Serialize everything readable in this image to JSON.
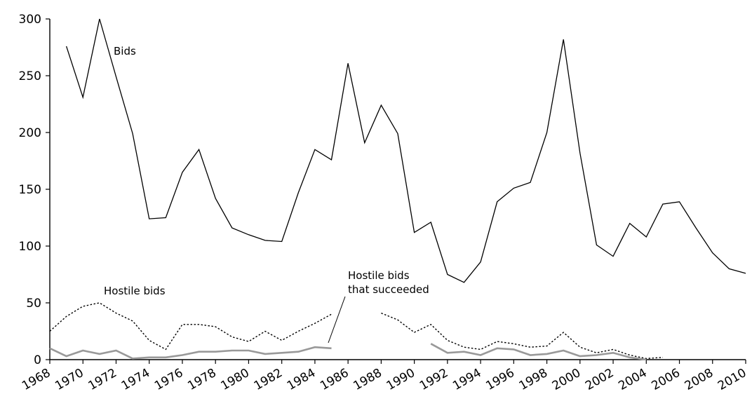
{
  "chart_data": {
    "type": "line",
    "title": "",
    "xlabel": "",
    "ylabel": "",
    "xlim": [
      1968,
      2010
    ],
    "ylim": [
      0,
      300
    ],
    "grid": false,
    "legend": "none",
    "x_ticks": [
      "1968",
      "1970",
      "1972",
      "1974",
      "1976",
      "1978",
      "1980",
      "1982",
      "1984",
      "1986",
      "1988",
      "1990",
      "1992",
      "1994",
      "1996",
      "1998",
      "2000",
      "2002",
      "2004",
      "2006",
      "2008",
      "2010"
    ],
    "y_ticks": [
      "0",
      "50",
      "100",
      "150",
      "200",
      "250",
      "300"
    ],
    "annotations": {
      "bids": "Bids",
      "hostile": "Hostile bids",
      "succeeded_line1": "Hostile bids",
      "succeeded_line2": "that succeeded"
    },
    "series": [
      {
        "name": "Bids",
        "color": "#000000",
        "style": "solid",
        "x": [
          1969,
          1970,
          1971,
          1972,
          1973,
          1974,
          1975,
          1976,
          1977,
          1978,
          1979,
          1980,
          1981,
          1982,
          1983,
          1984,
          1985,
          1986,
          1987,
          1988,
          1989,
          1990,
          1991,
          1992,
          1993,
          1994,
          1995,
          1996,
          1997,
          1998,
          1999,
          2000,
          2001,
          2002,
          2003,
          2004,
          2005,
          2006,
          2007,
          2008,
          2009,
          2010
        ],
        "y": [
          276,
          231,
          300,
          249,
          199,
          124,
          125,
          165,
          185,
          142,
          116,
          110,
          105,
          104,
          147,
          185,
          176,
          261,
          191,
          224,
          199,
          112,
          121,
          75,
          68,
          86,
          139,
          151,
          156,
          200,
          282,
          182,
          101,
          91,
          120,
          108,
          137,
          139,
          116,
          94,
          80,
          76
        ]
      },
      {
        "name": "Hostile bids",
        "color": "#000000",
        "style": "dotted",
        "segments": [
          {
            "x": [
              1968,
              1969,
              1970,
              1971,
              1972,
              1973,
              1974,
              1975,
              1976,
              1977,
              1978,
              1979,
              1980,
              1981,
              1982,
              1983,
              1984,
              1985
            ],
            "y": [
              25,
              38,
              47,
              50,
              41,
              34,
              17,
              9,
              31,
              31,
              29,
              20,
              16,
              25,
              17,
              25,
              32,
              40
            ]
          },
          {
            "x": [
              1988,
              1989,
              1990,
              1991,
              1992,
              1993,
              1994,
              1995,
              1996,
              1997,
              1998,
              1999,
              2000,
              2001,
              2002,
              2003,
              2004,
              2005
            ],
            "y": [
              41,
              35,
              24,
              31,
              17,
              11,
              9,
              16,
              14,
              11,
              12,
              24,
              11,
              6,
              9,
              4,
              1,
              2
            ]
          }
        ]
      },
      {
        "name": "Hostile bids that succeeded",
        "color": "#999999",
        "style": "solid",
        "segments": [
          {
            "x": [
              1968,
              1969,
              1970,
              1971,
              1972,
              1973,
              1974,
              1975,
              1976,
              1977,
              1978,
              1979,
              1980,
              1981,
              1982,
              1983,
              1984,
              1985
            ],
            "y": [
              10,
              3,
              8,
              5,
              8,
              1,
              2,
              2,
              4,
              7,
              7,
              8,
              8,
              5,
              6,
              7,
              11,
              10
            ]
          },
          {
            "x": [
              1991,
              1992,
              1993,
              1994,
              1995,
              1996,
              1997,
              1998,
              1999,
              2000,
              2001,
              2002,
              2003,
              2004
            ],
            "y": [
              14,
              6,
              7,
              4,
              10,
              9,
              4,
              5,
              8,
              3,
              4,
              6,
              2,
              0
            ]
          }
        ]
      }
    ]
  }
}
